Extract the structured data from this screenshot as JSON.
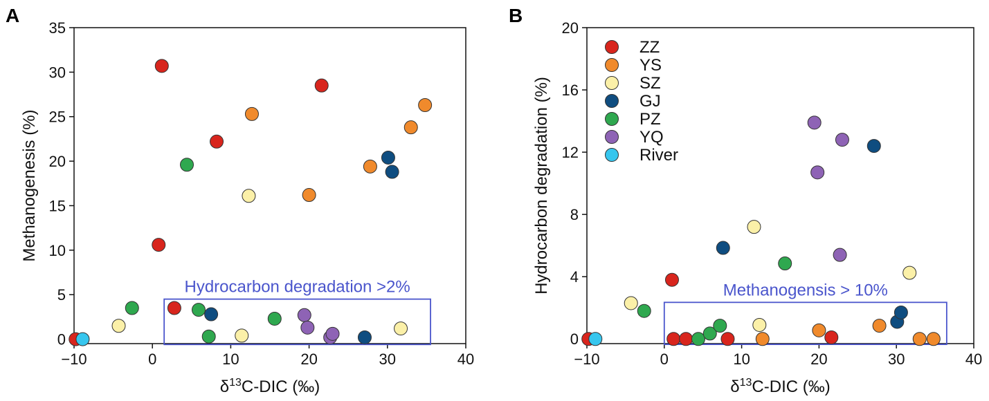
{
  "colors": {
    "ZZ": "#d8251d",
    "YS": "#f08a2c",
    "SZ": "#fbf0a8",
    "GJ": "#0f4d80",
    "PZ": "#2fa84f",
    "YQ": "#8e63b5",
    "River": "#37c6ee",
    "annotation": "#4a55cc"
  },
  "chart_data": [
    {
      "type": "scatter",
      "panel": "A",
      "title": "",
      "xlabel": "δ13C-DIC (‰)",
      "xlabel_parts": {
        "prefix": "δ",
        "sup": "13",
        "suffix": "C-DIC (‰)"
      },
      "ylabel": "Methanogenesis (%)",
      "xlim": [
        -10,
        40
      ],
      "ylim": [
        -0.5,
        35
      ],
      "xticks": [
        -10,
        0,
        10,
        20,
        30,
        40
      ],
      "xtick_labels": [
        "−10",
        "0",
        "10",
        "20",
        "30",
        "40"
      ],
      "yticks": [
        0,
        5,
        10,
        15,
        20,
        25,
        30,
        35
      ],
      "ytick_labels": [
        "0",
        "5",
        "10",
        "15",
        "20",
        "25",
        "30",
        "35"
      ],
      "grid": false,
      "annotation": {
        "text": "Hydrocarbon degradation >2%",
        "box_x": [
          1.5,
          35.5
        ],
        "box_y": [
          -0.6,
          4.5
        ]
      },
      "series": [
        {
          "name": "ZZ",
          "points": [
            [
              -9.8,
              0
            ],
            [
              1.2,
              30.7
            ],
            [
              0.8,
              10.6
            ],
            [
              8.2,
              22.2
            ],
            [
              21.6,
              28.5
            ],
            [
              2.8,
              3.5
            ]
          ]
        },
        {
          "name": "YS",
          "points": [
            [
              12.7,
              25.3
            ],
            [
              20.0,
              16.2
            ],
            [
              27.8,
              19.4
            ],
            [
              33.0,
              23.8
            ],
            [
              34.8,
              26.3
            ]
          ]
        },
        {
          "name": "SZ",
          "points": [
            [
              -4.3,
              1.5
            ],
            [
              12.3,
              16.1
            ],
            [
              11.4,
              0.4
            ],
            [
              31.7,
              1.2
            ]
          ]
        },
        {
          "name": "GJ",
          "points": [
            [
              30.1,
              20.4
            ],
            [
              30.6,
              18.8
            ],
            [
              7.5,
              2.8
            ],
            [
              27.1,
              0.2
            ]
          ]
        },
        {
          "name": "PZ",
          "points": [
            [
              4.4,
              19.6
            ],
            [
              -2.6,
              3.5
            ],
            [
              5.9,
              3.3
            ],
            [
              7.2,
              0.3
            ],
            [
              15.6,
              2.3
            ]
          ]
        },
        {
          "name": "YQ",
          "points": [
            [
              19.4,
              2.7
            ],
            [
              19.8,
              1.3
            ],
            [
              22.7,
              0.2
            ],
            [
              23.0,
              0.6
            ]
          ]
        },
        {
          "name": "River",
          "points": [
            [
              -8.9,
              0
            ]
          ]
        }
      ]
    },
    {
      "type": "scatter",
      "panel": "B",
      "title": "",
      "xlabel": "δ13C-DIC (‰)",
      "xlabel_parts": {
        "prefix": "δ",
        "sup": "13",
        "suffix": "C-DIC (‰)"
      },
      "ylabel": "Hydrocarbon degradation (%)",
      "xlim": [
        -10,
        40
      ],
      "ylim": [
        -0.3,
        20
      ],
      "xticks": [
        -10,
        0,
        10,
        20,
        30,
        40
      ],
      "xtick_labels": [
        "−10",
        "0",
        "10",
        "20",
        "30",
        "40"
      ],
      "yticks": [
        0,
        4,
        8,
        12,
        16,
        20
      ],
      "ytick_labels": [
        "0",
        "4",
        "8",
        "12",
        "16",
        "20"
      ],
      "grid": false,
      "legend": {
        "location": "top-left",
        "entries": [
          "ZZ",
          "YS",
          "SZ",
          "GJ",
          "PZ",
          "YQ",
          "River"
        ]
      },
      "annotation": {
        "text": "Methanogensis > 10%",
        "box_x": [
          0,
          36.5
        ],
        "box_y": [
          -0.35,
          2.35
        ]
      },
      "series": [
        {
          "name": "ZZ",
          "points": [
            [
              -9.8,
              0
            ],
            [
              1.0,
              3.8
            ],
            [
              1.2,
              0
            ],
            [
              2.8,
              0
            ],
            [
              8.2,
              0
            ],
            [
              21.6,
              0.1
            ]
          ]
        },
        {
          "name": "YS",
          "points": [
            [
              12.7,
              0
            ],
            [
              20.0,
              0.55
            ],
            [
              27.8,
              0.85
            ],
            [
              33.0,
              0
            ],
            [
              34.8,
              0
            ]
          ]
        },
        {
          "name": "SZ",
          "points": [
            [
              -4.3,
              2.3
            ],
            [
              11.6,
              7.2
            ],
            [
              12.3,
              0.9
            ],
            [
              31.7,
              4.25
            ]
          ]
        },
        {
          "name": "GJ",
          "points": [
            [
              7.6,
              5.85
            ],
            [
              27.1,
              12.4
            ],
            [
              30.1,
              1.1
            ],
            [
              30.6,
              1.7
            ]
          ]
        },
        {
          "name": "PZ",
          "points": [
            [
              -2.6,
              1.8
            ],
            [
              4.4,
              0
            ],
            [
              5.9,
              0.35
            ],
            [
              7.2,
              0.85
            ],
            [
              15.6,
              4.85
            ]
          ]
        },
        {
          "name": "YQ",
          "points": [
            [
              19.4,
              13.9
            ],
            [
              19.8,
              10.7
            ],
            [
              23.0,
              12.8
            ],
            [
              22.7,
              5.4
            ]
          ]
        },
        {
          "name": "River",
          "points": [
            [
              -8.9,
              0
            ]
          ]
        }
      ]
    }
  ]
}
